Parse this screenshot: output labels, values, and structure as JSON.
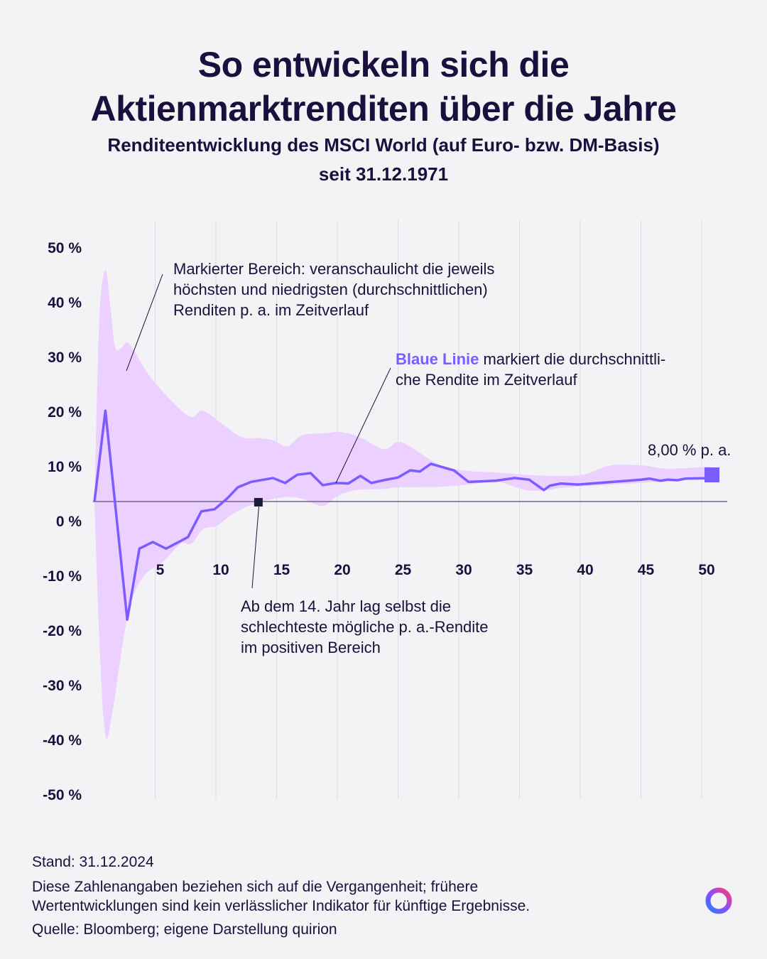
{
  "title_lines": [
    "So entwickeln sich die",
    "Aktienmarktrenditen über die Jahre"
  ],
  "subtitle_lines": [
    "Renditeentwicklung des MSCI World (auf Euro- bzw. DM-Basis)",
    "seit 31.12.1971"
  ],
  "annotations": {
    "band": [
      "Markierter Bereich: veranschaulicht die jeweils",
      "höchsten und niedrigsten (durchschnittlichen)",
      "Renditen p. a. im Zeitverlauf"
    ],
    "line_highlight": "Blaue Linie",
    "line_rest_1": " markiert die durchschnittli-",
    "line_rest_2": "che Rendite im Zeitverlauf",
    "year14": [
      "Ab dem 14. Jahr lag selbst die",
      "schlechteste mögliche p. a.-Rendite",
      "im positiven Bereich"
    ],
    "end_label": "8,00 % p. a."
  },
  "footer": {
    "stand": "Stand: 31.12.2024",
    "disclaimer_lines": [
      "Diese Zahlenangaben beziehen sich auf die Vergangenheit; frühere",
      "Wertentwicklungen sind kein verlässlicher Indikator für künftige Ergebnisse."
    ],
    "source": "Quelle: Bloomberg; eigene Darstellung quirion"
  },
  "colors": {
    "text": "#1a0f3d",
    "line": "#7b5cff",
    "band": "#ecd0ff",
    "grid": "#dcdce4",
    "marker_dark": "#1e1b3a"
  },
  "logo": "quirion-ring-logo",
  "chart_data": {
    "type": "line",
    "xlabel": "",
    "ylabel": "",
    "xlim": [
      0,
      51
    ],
    "ylim": [
      -50,
      50
    ],
    "x_ticks": [
      5,
      10,
      15,
      20,
      25,
      30,
      35,
      40,
      45,
      50
    ],
    "x_tick_labels": [
      "5",
      "10",
      "15",
      "20",
      "25",
      "30",
      "35",
      "40",
      "45",
      "50"
    ],
    "y_ticks": [
      50,
      40,
      30,
      20,
      10,
      0,
      -10,
      -20,
      -30,
      -40,
      -50
    ],
    "y_tick_labels": [
      "50 %",
      "40 %",
      "30 %",
      "20 %",
      "10 %",
      "0 %",
      "-10 %",
      "-20 %",
      "-30 %",
      "-40 %",
      "-50 %"
    ],
    "grid": "vertical",
    "mean_line": {
      "x": [
        0,
        0.9,
        2.7,
        3.7,
        4.8,
        5.9,
        7.7,
        8.8,
        9.9,
        10.9,
        11.8,
        12.9,
        14.7,
        15.7,
        16.7,
        17.8,
        18.8,
        19.9,
        20.9,
        21.9,
        22.8,
        23.8,
        25,
        26,
        26.8,
        27.7,
        29.6,
        30.8,
        33,
        34.6,
        35.8,
        37,
        37.5,
        38.4,
        39.8,
        45,
        45.7,
        46.6,
        47.2,
        48,
        48.7,
        50.8
      ],
      "y": [
        3.5,
        20.1,
        -18.1,
        -5.1,
        -3.9,
        -5.1,
        -3.0,
        1.7,
        2.1,
        4.0,
        6.1,
        7.1,
        7.8,
        6.9,
        8.4,
        8.7,
        6.5,
        6.9,
        6.8,
        8.2,
        6.9,
        7.4,
        7.9,
        9.2,
        9.0,
        10.4,
        9.2,
        7.1,
        7.3,
        7.8,
        7.5,
        5.6,
        6.4,
        6.8,
        6.6,
        7.5,
        7.7,
        7.3,
        7.5,
        7.4,
        7.7,
        7.8
      ]
    },
    "band_upper": {
      "x": [
        0,
        0.4,
        0.9,
        1.3,
        1.7,
        2.2,
        2.7,
        3.3,
        4.8,
        7.7,
        8.9,
        10.4,
        12.1,
        13.6,
        14.7,
        15.9,
        17.1,
        19.1,
        20.3,
        21.8,
        23.8,
        25,
        26.1,
        28.5,
        30.8,
        33.2,
        35.5,
        37.8,
        40.2,
        42.5,
        45.1,
        47.2,
        50.7
      ],
      "y": [
        3.5,
        36.8,
        45.8,
        39.4,
        31.8,
        31.6,
        32.6,
        30.9,
        25.7,
        19.2,
        20.1,
        17.9,
        15.3,
        15.1,
        14.7,
        13.6,
        15.6,
        16.0,
        16.2,
        15.3,
        13.1,
        14.4,
        13.4,
        10.1,
        9.1,
        8.8,
        8.4,
        8.2,
        8.4,
        10.1,
        10.1,
        9.5,
        9.9
      ]
    },
    "band_lower": {
      "x": [
        0,
        0.4,
        0.9,
        1.5,
        2.7,
        3.9,
        5.7,
        7.1,
        8.0,
        8.9,
        10.1,
        11.5,
        13.3,
        15.6,
        17.1,
        18.8,
        20.0,
        21.5,
        23.8,
        25,
        28.5,
        30.8,
        33.2,
        35.5,
        37.3,
        39.0,
        44.9,
        50.7
      ],
      "y": [
        3.5,
        -21.7,
        -39.2,
        -34.7,
        -17.8,
        -10.6,
        -7.4,
        -4.2,
        -4.2,
        -1.6,
        -0.9,
        1.4,
        3.2,
        4.3,
        4.0,
        2.7,
        4.5,
        5.6,
        5.8,
        6.1,
        6.2,
        6.6,
        7.1,
        5.6,
        5.6,
        6.1,
        6.9,
        7.8
      ]
    },
    "final_value": 8.0,
    "year14_marker": {
      "x": 13.5,
      "y": 3.4
    }
  }
}
